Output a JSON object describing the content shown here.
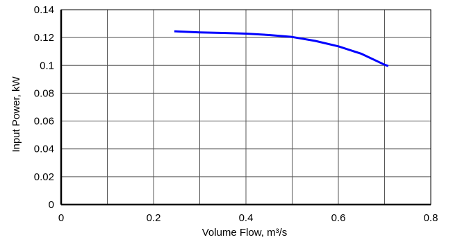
{
  "chart_data": {
    "type": "line",
    "title": "",
    "xlabel": "Volume Flow, m³/s",
    "ylabel": "Input Power, kW",
    "xlim": [
      0,
      0.8
    ],
    "ylim": [
      0,
      0.14
    ],
    "x_ticks": [
      0,
      0.2,
      0.4,
      0.6,
      0.8
    ],
    "x_tick_labels": [
      "0",
      "0.2",
      "0.4",
      "0.6",
      "0.8"
    ],
    "y_ticks": [
      0,
      0.02,
      0.04,
      0.06,
      0.08,
      0.1,
      0.12,
      0.14
    ],
    "y_tick_labels": [
      "0",
      "0.02",
      "0.04",
      "0.06",
      "0.08",
      "0.1",
      "0.12",
      "0.14"
    ],
    "grid": true,
    "legend": "none",
    "series": [
      {
        "color": "#0000ff",
        "points": [
          [
            0.245,
            0.1245
          ],
          [
            0.3,
            0.1237
          ],
          [
            0.35,
            0.1233
          ],
          [
            0.4,
            0.1228
          ],
          [
            0.45,
            0.1218
          ],
          [
            0.5,
            0.1204
          ],
          [
            0.55,
            0.1176
          ],
          [
            0.6,
            0.1137
          ],
          [
            0.65,
            0.1083
          ],
          [
            0.7,
            0.1005
          ],
          [
            0.708,
            0.0995
          ]
        ]
      }
    ]
  }
}
